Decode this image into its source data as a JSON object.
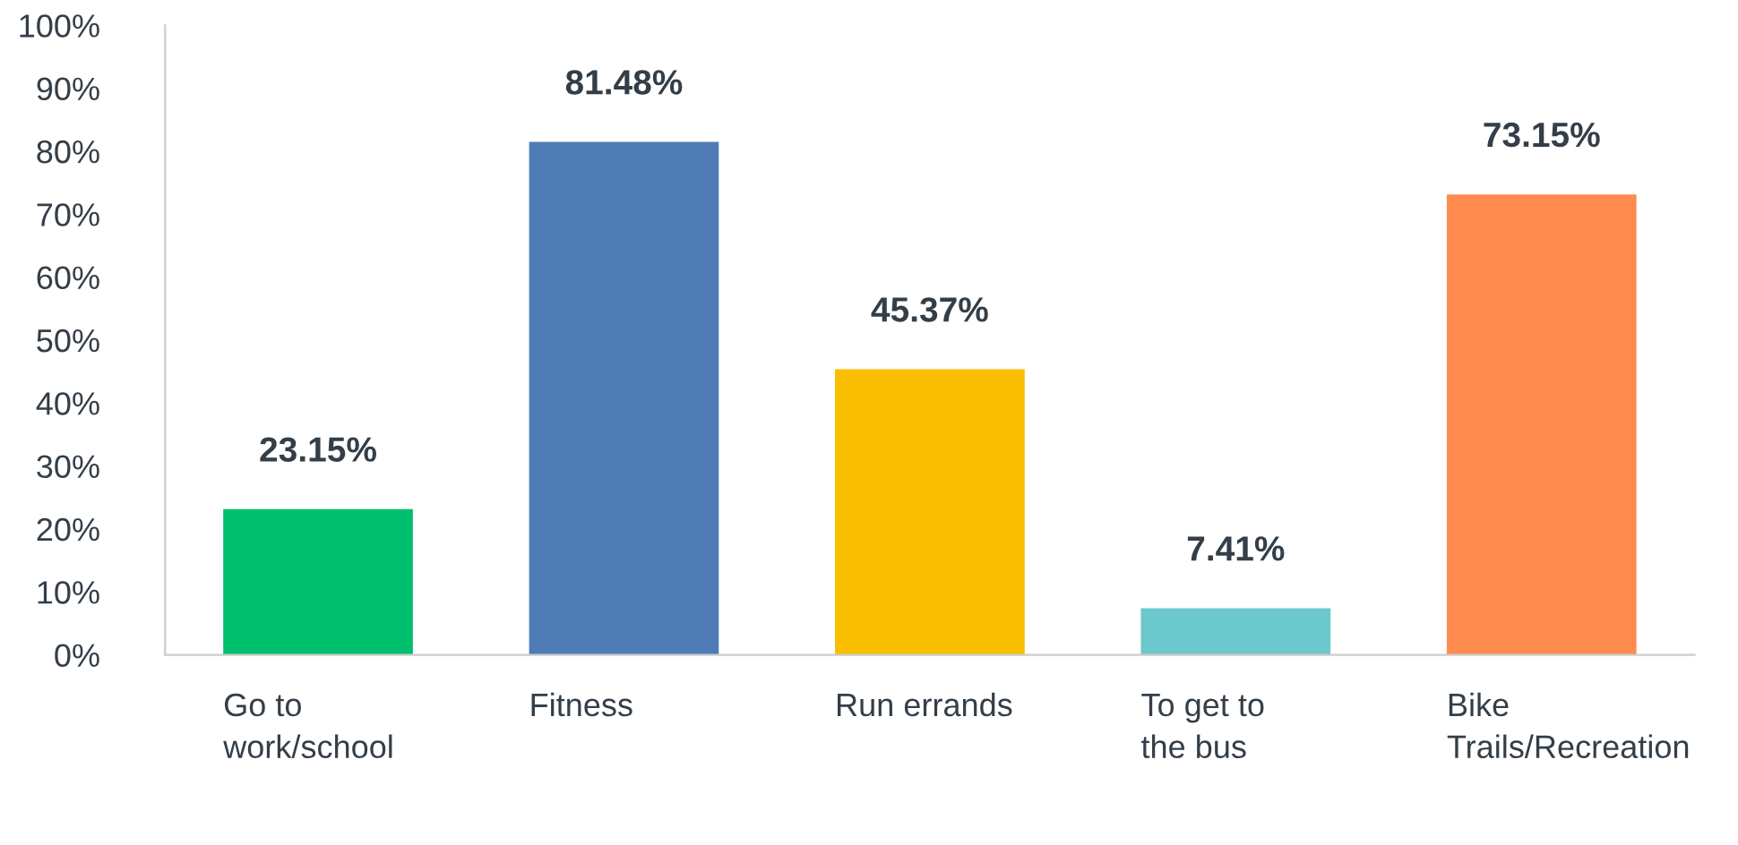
{
  "chart_data": {
    "type": "bar",
    "categories": [
      "Go to work/school",
      "Fitness",
      "Run errands",
      "To get to the bus",
      "Bike Trails/Recreation"
    ],
    "values": [
      23.15,
      81.48,
      45.37,
      7.41,
      73.15
    ],
    "colors": [
      "#00bf6f",
      "#507cb6",
      "#f9be00",
      "#6bc8cd",
      "#ff8b4f"
    ],
    "value_labels": [
      "23.15%",
      "81.48%",
      "45.37%",
      "7.41%",
      "73.15%"
    ],
    "ylim": [
      0,
      100
    ],
    "yticks": [
      {
        "value": 0,
        "label": "0%"
      },
      {
        "value": 10,
        "label": "10%"
      },
      {
        "value": 20,
        "label": "20%"
      },
      {
        "value": 30,
        "label": "30%"
      },
      {
        "value": 40,
        "label": "40%"
      },
      {
        "value": 50,
        "label": "50%"
      },
      {
        "value": 60,
        "label": "60%"
      },
      {
        "value": 70,
        "label": "70%"
      },
      {
        "value": 80,
        "label": "80%"
      },
      {
        "value": 90,
        "label": "90%"
      },
      {
        "value": 100,
        "label": "100%"
      }
    ],
    "grid": false,
    "legend": false
  }
}
